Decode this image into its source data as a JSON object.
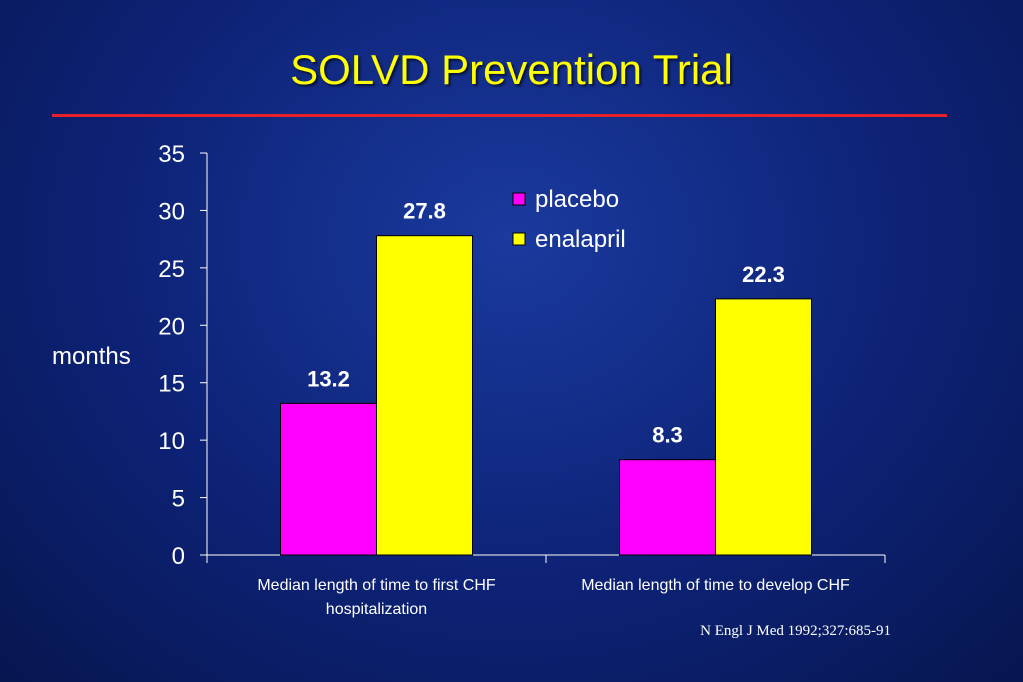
{
  "slide": {
    "title": "SOLVD Prevention Trial",
    "citation": "N Engl J Med 1992;327:685-91"
  },
  "chart_data": {
    "type": "bar",
    "ylabel": "months",
    "ylim": [
      0,
      35
    ],
    "yticks": [
      0,
      5,
      10,
      15,
      20,
      25,
      30,
      35
    ],
    "categories": [
      [
        "Median length of time to first CHF",
        "hospitalization"
      ],
      [
        "Median length of time to develop CHF"
      ]
    ],
    "series": [
      {
        "name": "placebo",
        "color": "#ff00ff",
        "values": [
          13.2,
          8.3
        ]
      },
      {
        "name": "enalapril",
        "color": "#ffff00",
        "values": [
          27.8,
          22.3
        ]
      }
    ],
    "data_labels": [
      "13.2",
      "27.8",
      "8.3",
      "22.3"
    ],
    "legend": "top-right",
    "grid": false
  }
}
